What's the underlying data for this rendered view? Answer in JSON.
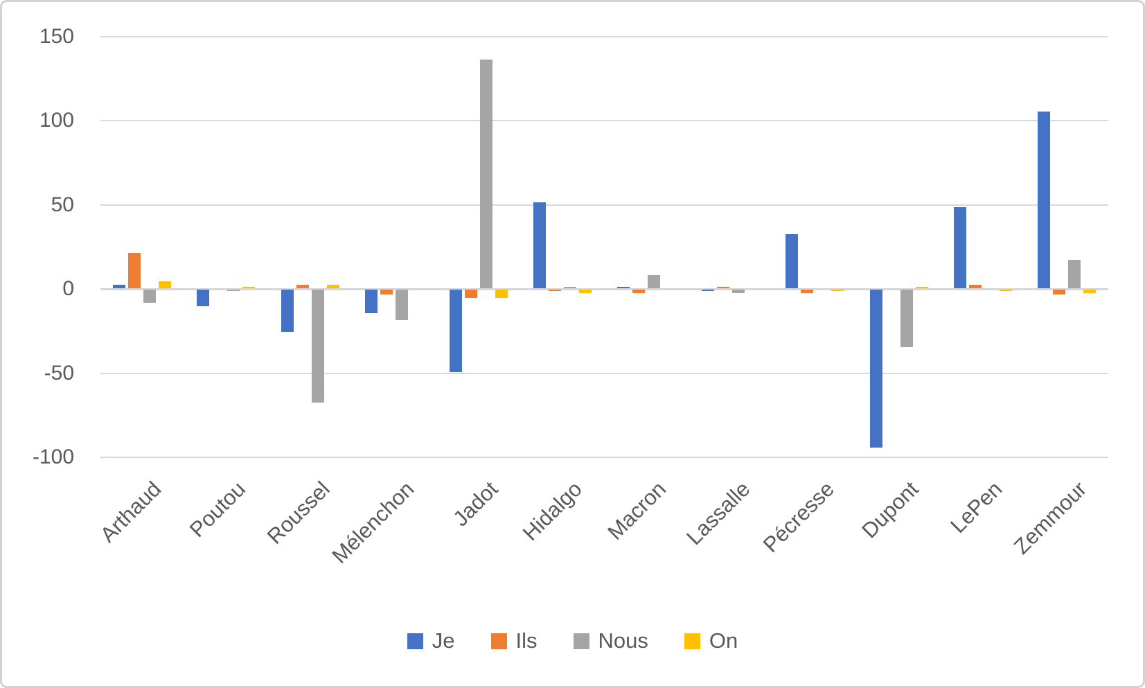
{
  "chart_data": {
    "type": "bar",
    "title": "",
    "xlabel": "",
    "ylabel": "",
    "categories": [
      "Arthaud",
      "Poutou",
      "Roussel",
      "Mélenchon",
      "Jadot",
      "Hidalgo",
      "Macron",
      "Lassalle",
      "Pécresse",
      "Dupont",
      "LePen",
      "Zemmour"
    ],
    "series": [
      {
        "name": "Je",
        "color": "#4472C4",
        "values": [
          2,
          -10,
          -25,
          -14,
          -49,
          51,
          1,
          -1,
          32,
          -94,
          48,
          105
        ]
      },
      {
        "name": "Ils",
        "color": "#ED7D31",
        "values": [
          21,
          0,
          2,
          -3,
          -5,
          -1,
          -2,
          1,
          -2,
          0,
          2,
          -3
        ]
      },
      {
        "name": "Nous",
        "color": "#A5A5A5",
        "values": [
          -8,
          -1,
          -67,
          -18,
          136,
          1,
          8,
          -2,
          0,
          -34,
          0,
          17
        ]
      },
      {
        "name": "On",
        "color": "#FFC000",
        "values": [
          4,
          1,
          2,
          0,
          -5,
          -2,
          0,
          0,
          -1,
          1,
          -1,
          -2
        ]
      }
    ],
    "ylim": [
      -100,
      150
    ],
    "yticks": [
      "150",
      "100",
      "50",
      "0",
      "-50",
      "-100"
    ],
    "ytick_values": [
      150,
      100,
      50,
      0,
      -50,
      -100
    ],
    "grid": true,
    "legend_position": "bottom",
    "legend_entries": [
      "Je",
      "Ils",
      "Nous",
      "On"
    ]
  },
  "style": {
    "gridline_color": "#D9D9D9",
    "axis_text_color": "#595959",
    "background_color": "#FFFFFF",
    "border_color": "#D2D2D2"
  }
}
